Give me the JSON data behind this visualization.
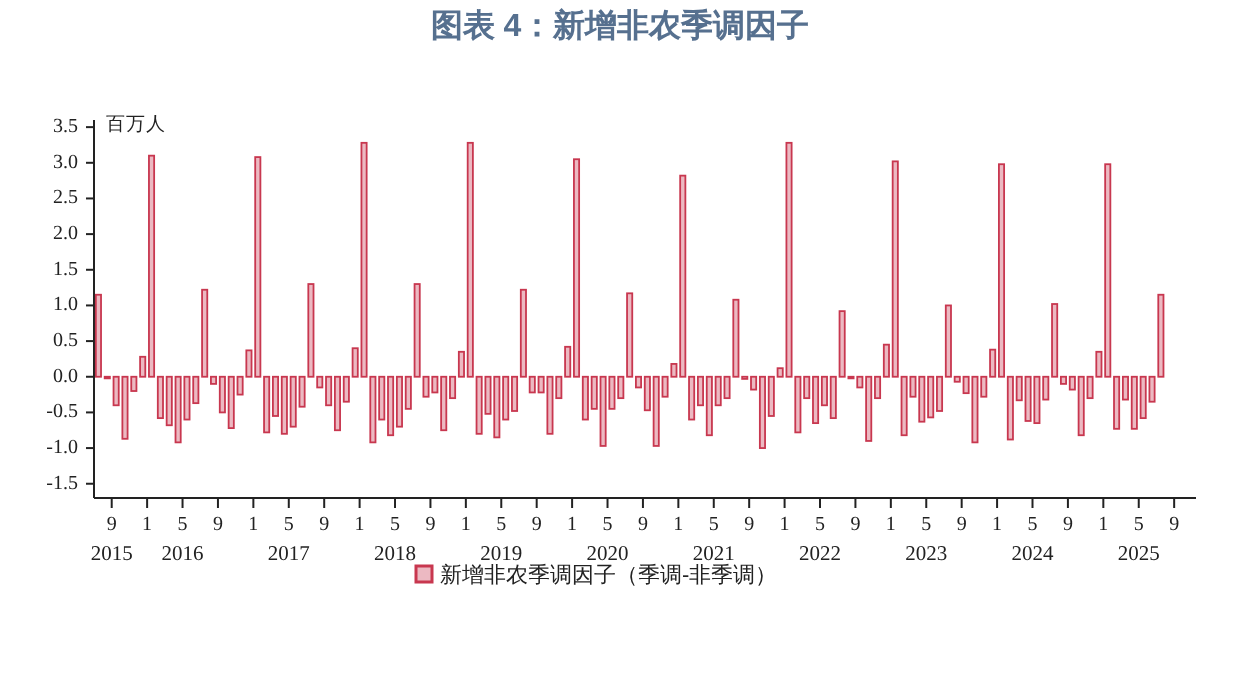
{
  "chart_data": {
    "type": "bar",
    "title": "图表 4：新增非农季调因子",
    "ylabel": "百万人",
    "legend": "bottom",
    "x": [
      "2015-07",
      "2015-08",
      "2015-09",
      "2015-10",
      "2015-11",
      "2015-12",
      "2016-01",
      "2016-02",
      "2016-03",
      "2016-04",
      "2016-05",
      "2016-06",
      "2016-07",
      "2016-08",
      "2016-09",
      "2016-10",
      "2016-11",
      "2016-12",
      "2017-01",
      "2017-02",
      "2017-03",
      "2017-04",
      "2017-05",
      "2017-06",
      "2017-07",
      "2017-08",
      "2017-09",
      "2017-10",
      "2017-11",
      "2017-12",
      "2018-01",
      "2018-02",
      "2018-03",
      "2018-04",
      "2018-05",
      "2018-06",
      "2018-07",
      "2018-08",
      "2018-09",
      "2018-10",
      "2018-11",
      "2018-12",
      "2019-01",
      "2019-02",
      "2019-03",
      "2019-04",
      "2019-05",
      "2019-06",
      "2019-07",
      "2019-08",
      "2019-09",
      "2019-10",
      "2019-11",
      "2019-12",
      "2020-01",
      "2020-02",
      "2020-03",
      "2020-04",
      "2020-05",
      "2020-06",
      "2020-07",
      "2020-08",
      "2020-09",
      "2020-10",
      "2020-11",
      "2020-12",
      "2021-01",
      "2021-02",
      "2021-03",
      "2021-04",
      "2021-05",
      "2021-06",
      "2021-07",
      "2021-08",
      "2021-09",
      "2021-10",
      "2021-11",
      "2021-12",
      "2022-01",
      "2022-02",
      "2022-03",
      "2022-04",
      "2022-05",
      "2022-06",
      "2022-07",
      "2022-08",
      "2022-09",
      "2022-10",
      "2022-11",
      "2022-12",
      "2023-01",
      "2023-02",
      "2023-03",
      "2023-04",
      "2023-05",
      "2023-06",
      "2023-07",
      "2023-08",
      "2023-09",
      "2023-10",
      "2023-11",
      "2023-12",
      "2024-01",
      "2024-02",
      "2024-03",
      "2024-04",
      "2024-05",
      "2024-06",
      "2024-07",
      "2024-08",
      "2024-09",
      "2024-10",
      "2024-11",
      "2024-12",
      "2025-01",
      "2025-02",
      "2025-03",
      "2025-04",
      "2025-05",
      "2025-06",
      "2025-07"
    ],
    "series": [
      {
        "name": "新增非农季调因子（季调-非季调）",
        "color": "#c8374f",
        "values": [
          1.15,
          0.0,
          -0.4,
          -0.87,
          -0.2,
          0.28,
          3.1,
          -0.58,
          -0.68,
          -0.92,
          -0.6,
          -0.37,
          1.22,
          -0.1,
          -0.5,
          -0.72,
          -0.25,
          0.37,
          3.08,
          -0.78,
          -0.55,
          -0.8,
          -0.7,
          -0.42,
          1.3,
          -0.15,
          -0.4,
          -0.75,
          -0.35,
          0.4,
          3.28,
          -0.92,
          -0.6,
          -0.82,
          -0.7,
          -0.45,
          1.3,
          -0.28,
          -0.22,
          -0.75,
          -0.3,
          0.35,
          3.28,
          -0.8,
          -0.52,
          -0.85,
          -0.6,
          -0.48,
          1.22,
          -0.22,
          -0.22,
          -0.8,
          -0.3,
          0.42,
          3.05,
          -0.6,
          -0.45,
          -0.97,
          -0.45,
          -0.3,
          1.17,
          -0.15,
          -0.47,
          -0.97,
          -0.28,
          0.18,
          2.82,
          -0.6,
          -0.4,
          -0.82,
          -0.4,
          -0.3,
          1.08,
          -0.03,
          -0.18,
          -1.0,
          -0.55,
          0.12,
          3.28,
          -0.78,
          -0.3,
          -0.65,
          -0.4,
          -0.58,
          0.92,
          -0.02,
          -0.15,
          -0.9,
          -0.3,
          0.45,
          3.02,
          -0.82,
          -0.28,
          -0.63,
          -0.57,
          -0.48,
          1.0,
          -0.07,
          -0.23,
          -0.92,
          -0.28,
          0.38,
          2.98,
          -0.88,
          -0.33,
          -0.62,
          -0.65,
          -0.32,
          1.02,
          -0.1,
          -0.18,
          -0.82,
          -0.3,
          0.35,
          2.98,
          -0.73,
          -0.32,
          -0.73,
          -0.58,
          -0.35,
          1.15
        ]
      }
    ],
    "xlim": [
      "2015-07-01",
      "2025-11-15"
    ],
    "xticks": [
      {
        "value": "2015-09",
        "label": "9\n2015"
      },
      {
        "value": "2016-01",
        "label": "1"
      },
      {
        "value": "2016-05",
        "label": "5\n2016"
      },
      {
        "value": "2016-09",
        "label": "9"
      },
      {
        "value": "2017-01",
        "label": "1"
      },
      {
        "value": "2017-05",
        "label": "5\n2017"
      },
      {
        "value": "2017-09",
        "label": "9"
      },
      {
        "value": "2018-01",
        "label": "1"
      },
      {
        "value": "2018-05",
        "label": "5\n2018"
      },
      {
        "value": "2018-09",
        "label": "9"
      },
      {
        "value": "2019-01",
        "label": "1"
      },
      {
        "value": "2019-05",
        "label": "5\n2019"
      },
      {
        "value": "2019-09",
        "label": "9"
      },
      {
        "value": "2020-01",
        "label": "1"
      },
      {
        "value": "2020-05",
        "label": "5\n2020"
      },
      {
        "value": "2020-09",
        "label": "9"
      },
      {
        "value": "2021-01",
        "label": "1"
      },
      {
        "value": "2021-05",
        "label": "5\n2021"
      },
      {
        "value": "2021-09",
        "label": "9"
      },
      {
        "value": "2022-01",
        "label": "1"
      },
      {
        "value": "2022-05",
        "label": "5\n2022"
      },
      {
        "value": "2022-09",
        "label": "9"
      },
      {
        "value": "2023-01",
        "label": "1"
      },
      {
        "value": "2023-05",
        "label": "5\n2023"
      },
      {
        "value": "2023-09",
        "label": "9"
      },
      {
        "value": "2024-01",
        "label": "1"
      },
      {
        "value": "2024-05",
        "label": "5\n2024"
      },
      {
        "value": "2024-09",
        "label": "9"
      },
      {
        "value": "2025-01",
        "label": "1"
      },
      {
        "value": "2025-05",
        "label": "5\n2025"
      },
      {
        "value": "2025-09",
        "label": "9"
      }
    ],
    "ylim": [
      -1.7,
      3.6
    ],
    "yticks": [
      {
        "value": -1.5,
        "label": "-1.5"
      },
      {
        "value": -1.0,
        "label": "-1.0"
      },
      {
        "value": -0.5,
        "label": "-0.5"
      },
      {
        "value": 0,
        "label": "0.0"
      },
      {
        "value": 0.5,
        "label": "0.5"
      },
      {
        "value": 1.0,
        "label": "1.0"
      },
      {
        "value": 1.5,
        "label": "1.5"
      },
      {
        "value": 2.0,
        "label": "2.0"
      },
      {
        "value": 2.5,
        "label": "2.5"
      },
      {
        "value": 3.0,
        "label": "3.0"
      },
      {
        "value": 3.5,
        "label": "3.5"
      }
    ]
  }
}
